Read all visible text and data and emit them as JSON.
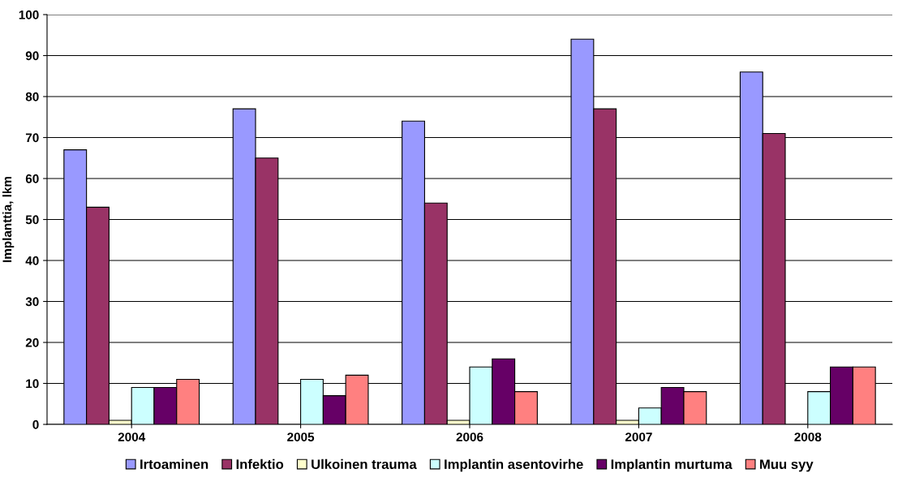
{
  "chart_data": {
    "type": "bar",
    "ylabel": "Implanttia, lkm",
    "categories": [
      "2004",
      "2005",
      "2006",
      "2007",
      "2008"
    ],
    "series": [
      {
        "name": "Irtoaminen",
        "color": "#9999ff",
        "values": [
          67,
          77,
          74,
          94,
          86
        ]
      },
      {
        "name": "Infektio",
        "color": "#993366",
        "values": [
          53,
          65,
          54,
          77,
          71
        ]
      },
      {
        "name": "Ulkoinen trauma",
        "color": "#ffffcc",
        "values": [
          1,
          0,
          1,
          1,
          0
        ]
      },
      {
        "name": "Implantin asentovirhe",
        "color": "#ccffff",
        "values": [
          9,
          11,
          14,
          4,
          8
        ]
      },
      {
        "name": "Implantin murtuma",
        "color": "#660066",
        "values": [
          9,
          7,
          16,
          9,
          14
        ]
      },
      {
        "name": "Muu syy",
        "color": "#ff8080",
        "values": [
          11,
          12,
          8,
          8,
          14
        ]
      }
    ],
    "ylim": [
      0,
      100
    ],
    "yticks": [
      0,
      10,
      20,
      30,
      40,
      50,
      60,
      70,
      80,
      90,
      100
    ],
    "grid": "y",
    "legend": "bottom"
  }
}
